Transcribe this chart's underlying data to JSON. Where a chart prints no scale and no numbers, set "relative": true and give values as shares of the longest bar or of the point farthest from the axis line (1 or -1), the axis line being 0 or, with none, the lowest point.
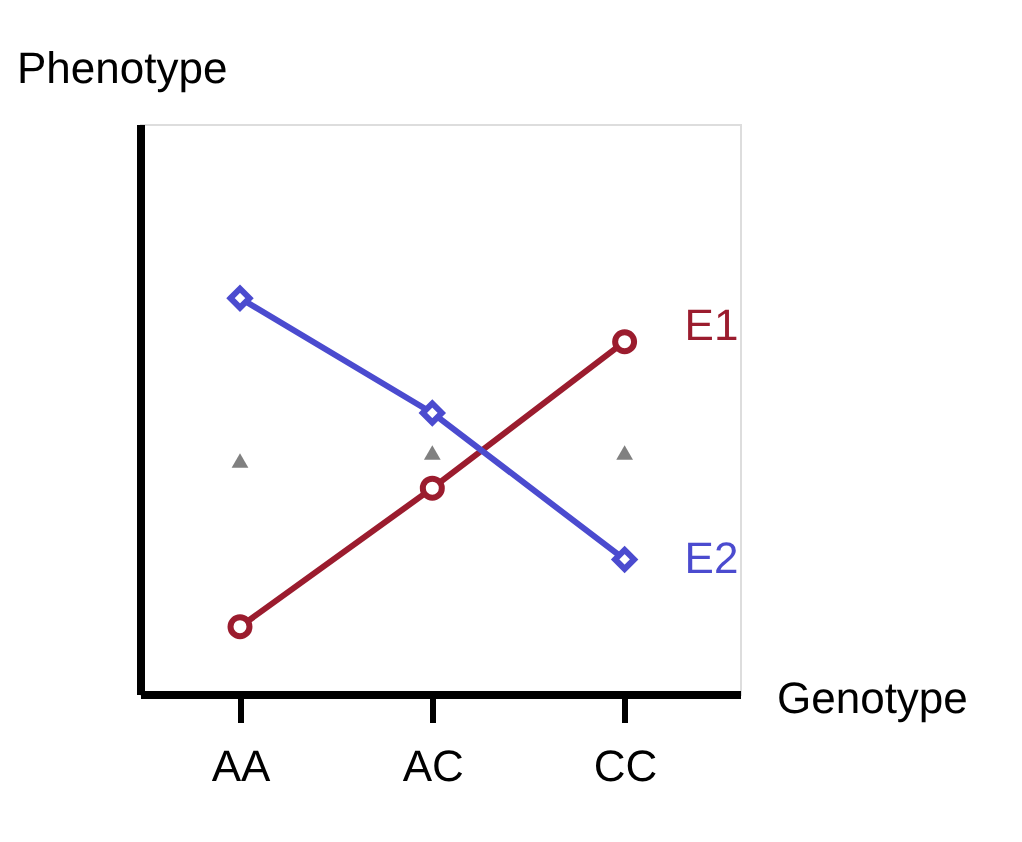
{
  "chart_data": {
    "type": "line",
    "relative": true,
    "xlabel": "Genotype",
    "ylabel": "Phenotype",
    "categories": [
      "AA",
      "AC",
      "CC"
    ],
    "series": [
      {
        "name": "E1",
        "color": "#9b1c2e",
        "values": [
          0.17,
          0.52,
          0.89
        ],
        "marker": "circle"
      },
      {
        "name": "E2",
        "color": "#4b4bcf",
        "values": [
          1,
          0.71,
          0.34
        ],
        "marker": "diamond"
      },
      {
        "type": "scatter",
        "color": "#808080",
        "values": [
          0.59,
          0.61,
          0.61
        ],
        "marker": "triangle"
      }
    ]
  }
}
